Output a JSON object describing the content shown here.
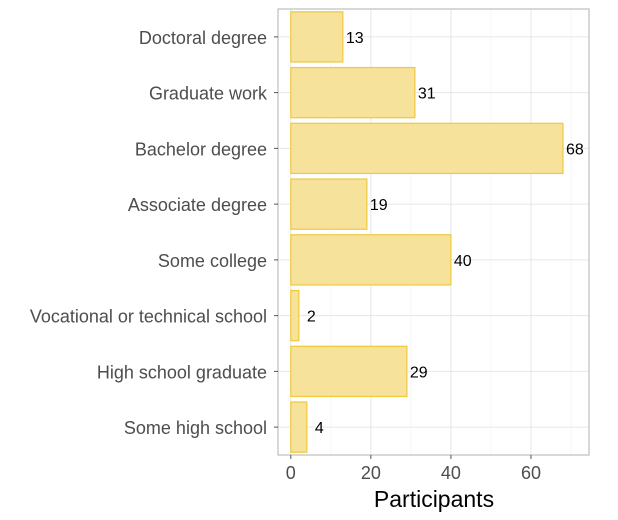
{
  "chart_data": {
    "type": "bar",
    "orientation": "horizontal",
    "categories": [
      "Doctoral degree",
      "Graduate work",
      "Bachelor degree",
      "Associate degree",
      "Some college",
      "Vocational or technical school",
      "High school graduate",
      "Some high school"
    ],
    "values": [
      13,
      31,
      68,
      19,
      40,
      2,
      29,
      4
    ],
    "data_labels": [
      "13",
      "31",
      "68",
      "19",
      "40",
      "2",
      "29",
      "4"
    ],
    "xlabel": "Participants",
    "ylabel": "",
    "xlim": [
      -3.2,
      74.5
    ],
    "xticks": [
      0,
      20,
      40,
      60
    ],
    "xtick_labels": [
      "0",
      "20",
      "40",
      "60"
    ],
    "grid": true,
    "colors": {
      "bar_fill": "#f6e29b",
      "bar_stroke": "#f0c93a",
      "grid": "#e6e6e6",
      "border": "#bdbdbd"
    }
  }
}
